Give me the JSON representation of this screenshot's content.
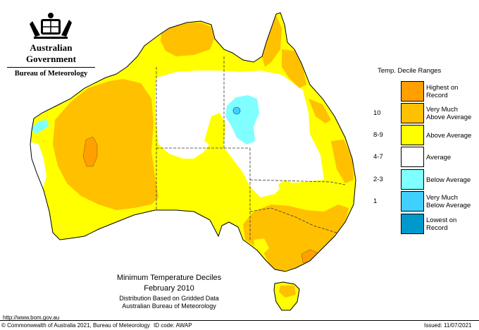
{
  "header": {
    "government": "Australian Government",
    "bureau": "Bureau of Meteorology"
  },
  "legend": {
    "title": "Temp. Decile Ranges",
    "items": [
      {
        "value": "",
        "label": "Highest on\nRecord",
        "color": "#FF9F00"
      },
      {
        "value": "10",
        "label": "Very Much\nAbove Average",
        "color": "#FFC000"
      },
      {
        "value": "8-9",
        "label": "Above Average",
        "color": "#FFFF00"
      },
      {
        "value": "4-7",
        "label": "Average",
        "color": "#FFFFFF"
      },
      {
        "value": "2-3",
        "label": "Below Average",
        "color": "#7FFFFF"
      },
      {
        "value": "1",
        "label": "Very Much\nBelow Average",
        "color": "#40CFFF"
      },
      {
        "value": "",
        "label": "Lowest on\nRecord",
        "color": "#0099CC"
      }
    ]
  },
  "titles": {
    "main": "Minimum Temperature Deciles",
    "period": "February 2010",
    "basis": "Distribution Based on Gridded Data",
    "agency": "Australian Bureau of Meteorology"
  },
  "footer": {
    "url": "http://www.bom.gov.au",
    "copyright": "© Commonwealth of Australia 2021, Bureau of Meteorology",
    "id_code": "ID code: AWAP",
    "issued": "Issued: 11/07/2021"
  }
}
